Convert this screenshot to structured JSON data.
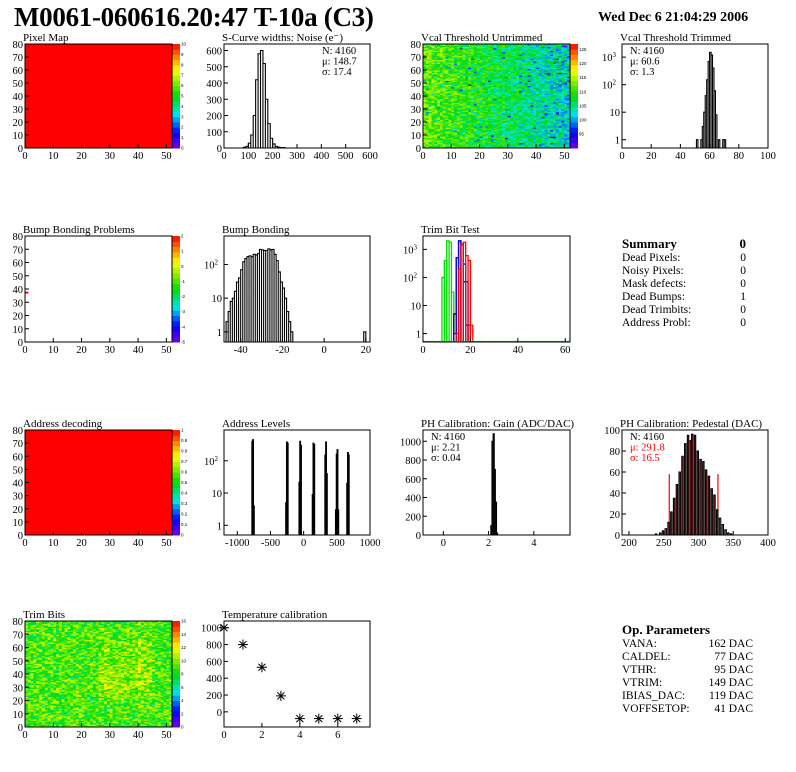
{
  "title": "M0061-060616.20:47 T-10a (C3)",
  "date": "Wed Dec  6 21:04:29 2006",
  "colors": {
    "hist_line": "#000000",
    "fit_red": "#ff0000",
    "trim_green": "#00dd00",
    "trim_blue": "#0000ff",
    "trim_red": "#ff0000"
  },
  "panels": [
    {
      "id": "pixel-map",
      "title": "Pixel Map",
      "type": "heatmap",
      "mode": "uniform",
      "value": 10,
      "zlim": [
        0,
        10
      ],
      "zticks": [
        0,
        1,
        2,
        3,
        4,
        5,
        6,
        7,
        8,
        9,
        10
      ],
      "xlim": [
        0,
        52
      ],
      "ylim": [
        0,
        80
      ],
      "xticks": [
        0,
        10,
        20,
        30,
        40,
        50
      ],
      "yticks": [
        0,
        10,
        20,
        30,
        40,
        50,
        60,
        70,
        80
      ]
    },
    {
      "id": "noise",
      "title": "S-Curve widths: Noise (e⁻)",
      "type": "hist",
      "xlim": [
        0,
        600
      ],
      "ylim": [
        0,
        640
      ],
      "xticks": [
        0,
        100,
        200,
        300,
        400,
        500,
        600
      ],
      "yticks": [
        0,
        100,
        200,
        300,
        400,
        500,
        600
      ],
      "width": 10,
      "bins": [
        [
          80,
          4
        ],
        [
          90,
          10
        ],
        [
          100,
          30
        ],
        [
          110,
          80
        ],
        [
          120,
          200
        ],
        [
          130,
          420
        ],
        [
          140,
          580
        ],
        [
          150,
          600
        ],
        [
          160,
          520
        ],
        [
          170,
          300
        ],
        [
          180,
          150
        ],
        [
          190,
          60
        ],
        [
          200,
          25
        ],
        [
          210,
          10
        ],
        [
          220,
          5
        ],
        [
          230,
          2
        ],
        [
          240,
          3
        ]
      ],
      "stats": {
        "pos": "right",
        "lines": [
          "N: 4160",
          "μ: 148.7",
          "σ: 17.4"
        ]
      }
    },
    {
      "id": "vcal-untrimmed",
      "title": "Vcal Threshold Untrimmed",
      "type": "heatmap",
      "mode": "vcal",
      "zlim": [
        90,
        127
      ],
      "zticks": [
        95,
        100,
        105,
        110,
        115,
        120,
        125
      ],
      "xlim": [
        0,
        52
      ],
      "ylim": [
        0,
        80
      ],
      "xticks": [
        0,
        10,
        20,
        30,
        40,
        50
      ],
      "yticks": [
        0,
        10,
        20,
        30,
        40,
        50,
        60,
        70,
        80
      ]
    },
    {
      "id": "vcal-trimmed",
      "title": "Vcal Threshold Trimmed",
      "type": "hist",
      "log": true,
      "xlim": [
        0,
        100
      ],
      "ylim": [
        0.5,
        3000
      ],
      "xticks": [
        0,
        20,
        40,
        60,
        80,
        100
      ],
      "yticks": [
        1,
        10,
        100,
        1000
      ],
      "width": 1,
      "bins": [
        [
          51,
          1
        ],
        [
          54,
          1
        ],
        [
          55,
          3
        ],
        [
          56,
          10
        ],
        [
          57,
          40
        ],
        [
          58,
          150
        ],
        [
          59,
          700
        ],
        [
          60,
          1500
        ],
        [
          61,
          1200
        ],
        [
          62,
          400
        ],
        [
          63,
          60
        ],
        [
          64,
          8
        ],
        [
          66,
          1
        ],
        [
          69,
          1
        ],
        [
          70,
          1
        ]
      ],
      "stats": {
        "pos": "left",
        "lines": [
          "N: 4160",
          "μ: 60.6",
          "σ:  1.3"
        ]
      }
    },
    {
      "id": "bump-bonding-problems",
      "title": "Bump Bonding Problems",
      "type": "heatmap",
      "mode": "single",
      "cell": [
        0,
        37
      ],
      "zlim": [
        -5,
        2
      ],
      "zticks": [
        -5,
        -4,
        -3,
        -2,
        -1,
        0,
        1,
        2
      ],
      "xlim": [
        0,
        52
      ],
      "ylim": [
        0,
        80
      ],
      "xticks": [
        0,
        10,
        20,
        30,
        40,
        50
      ],
      "yticks": [
        0,
        10,
        20,
        30,
        40,
        50,
        60,
        70,
        80
      ]
    },
    {
      "id": "bump-bonding",
      "title": "Bump Bonding",
      "type": "hist",
      "log": true,
      "xlim": [
        -48,
        22
      ],
      "ylim": [
        0.5,
        700
      ],
      "xticks": [
        -40,
        -20,
        0,
        20
      ],
      "yticks": [
        1,
        10,
        100
      ],
      "width": 1,
      "bins": [
        [
          -47,
          2
        ],
        [
          -46,
          4
        ],
        [
          -45,
          8
        ],
        [
          -44,
          10
        ],
        [
          -43,
          16
        ],
        [
          -42,
          30
        ],
        [
          -41,
          40
        ],
        [
          -40,
          70
        ],
        [
          -39,
          120
        ],
        [
          -38,
          150
        ],
        [
          -37,
          170
        ],
        [
          -36,
          180
        ],
        [
          -35,
          170
        ],
        [
          -34,
          200
        ],
        [
          -33,
          190
        ],
        [
          -32,
          210
        ],
        [
          -31,
          280
        ],
        [
          -30,
          270
        ],
        [
          -29,
          260
        ],
        [
          -28,
          260
        ],
        [
          -27,
          290
        ],
        [
          -26,
          270
        ],
        [
          -25,
          280
        ],
        [
          -24,
          200
        ],
        [
          -23,
          130
        ],
        [
          -22,
          60
        ],
        [
          -21,
          30
        ],
        [
          -20,
          20
        ],
        [
          -19,
          10
        ],
        [
          -18,
          4
        ],
        [
          -17,
          2
        ],
        [
          -16,
          1
        ],
        [
          19,
          1
        ]
      ]
    },
    {
      "id": "trim-bit-test",
      "title": "Trim Bit Test",
      "type": "multihist",
      "log": true,
      "xlim": [
        0,
        62
      ],
      "ylim": [
        0.5,
        3000
      ],
      "xticks": [
        0,
        20,
        40,
        60
      ],
      "yticks": [
        1,
        10,
        100,
        1000
      ],
      "width": 1,
      "series": [
        {
          "color": "#00dd00",
          "bins": [
            [
              8,
              100
            ],
            [
              9,
              400
            ],
            [
              10,
              2000
            ],
            [
              11,
              1800
            ],
            [
              12,
              30
            ]
          ]
        },
        {
          "color": "#000000",
          "bins": [
            [
              13,
              5
            ],
            [
              14,
              500
            ],
            [
              15,
              2000
            ],
            [
              16,
              1500
            ],
            [
              17,
              70
            ],
            [
              18,
              2
            ]
          ]
        },
        {
          "color": "#0000ff",
          "bins": [
            [
              13,
              1
            ],
            [
              14,
              500
            ],
            [
              15,
              2000
            ],
            [
              16,
              1500
            ],
            [
              17,
              300
            ],
            [
              18,
              70
            ],
            [
              19,
              2
            ]
          ]
        },
        {
          "color": "#ff0000",
          "bins": [
            [
              14,
              1
            ],
            [
              15,
              200
            ],
            [
              16,
              1500
            ],
            [
              17,
              1800
            ],
            [
              18,
              600
            ],
            [
              19,
              400
            ],
            [
              20,
              2
            ]
          ]
        }
      ]
    },
    {
      "id": "address-decoding",
      "title": "Address decoding",
      "type": "heatmap",
      "mode": "uniform",
      "value": 1,
      "zlim": [
        0,
        1
      ],
      "zticks": [
        0,
        0.1,
        0.2,
        0.3,
        0.4,
        0.5,
        0.6,
        0.7,
        0.8,
        0.9,
        1
      ],
      "xlim": [
        0,
        52
      ],
      "ylim": [
        0,
        80
      ],
      "xticks": [
        0,
        10,
        20,
        30,
        40,
        50
      ],
      "yticks": [
        0,
        10,
        20,
        30,
        40,
        50,
        60,
        70,
        80
      ]
    },
    {
      "id": "address-levels",
      "title": "Address Levels",
      "type": "hist",
      "log": true,
      "xlim": [
        -1200,
        1000
      ],
      "ylim": [
        0.5,
        900
      ],
      "xticks": [
        -1000,
        -500,
        0,
        500,
        1000
      ],
      "yticks": [
        1,
        10,
        100
      ],
      "width": 12,
      "bins": [
        [
          -780,
          400
        ],
        [
          -768,
          450
        ],
        [
          -756,
          4
        ],
        [
          -270,
          5
        ],
        [
          -258,
          380
        ],
        [
          -246,
          350
        ],
        [
          -70,
          22
        ],
        [
          -58,
          400
        ],
        [
          -46,
          300
        ],
        [
          130,
          9
        ],
        [
          142,
          350
        ],
        [
          154,
          320
        ],
        [
          320,
          150
        ],
        [
          332,
          380
        ],
        [
          344,
          40
        ],
        [
          480,
          3
        ],
        [
          492,
          160
        ],
        [
          504,
          220
        ],
        [
          516,
          3
        ],
        [
          650,
          20
        ],
        [
          662,
          180
        ],
        [
          674,
          150
        ]
      ]
    },
    {
      "id": "ph-gain",
      "title": "PH Calibration: Gain (ADC/DAC)",
      "type": "hist",
      "xlim": [
        -0.9,
        5.6
      ],
      "ylim": [
        0,
        1120
      ],
      "xticks": [
        0,
        2,
        4
      ],
      "yticks": [
        0,
        200,
        400,
        600,
        800,
        1000
      ],
      "width": 0.05,
      "bins": [
        [
          2.1,
          100
        ],
        [
          2.15,
          1000
        ],
        [
          2.2,
          1080
        ],
        [
          2.25,
          700
        ],
        [
          2.3,
          350
        ],
        [
          2.35,
          20
        ]
      ],
      "stats": {
        "pos": "left",
        "lines": [
          "N: 4160",
          "μ: 2.21",
          "σ: 0.04"
        ]
      }
    },
    {
      "id": "ph-pedestal",
      "title": "PH Calibration: Pedestal (DAC)",
      "type": "hist",
      "fit": {
        "range": [
          258,
          328
        ],
        "marker": 58
      },
      "xlim": [
        190,
        400
      ],
      "ylim": [
        0,
        100
      ],
      "xticks": [
        200,
        250,
        300,
        350,
        400
      ],
      "yticks": [
        0,
        20,
        40,
        60,
        80,
        100
      ],
      "width": 2,
      "bins": [
        [
          238,
          1
        ],
        [
          244,
          2
        ],
        [
          248,
          4
        ],
        [
          252,
          6
        ],
        [
          256,
          12
        ],
        [
          260,
          22
        ],
        [
          264,
          35
        ],
        [
          268,
          48
        ],
        [
          272,
          60
        ],
        [
          276,
          75
        ],
        [
          280,
          87
        ],
        [
          284,
          95
        ],
        [
          288,
          90
        ],
        [
          290,
          96
        ],
        [
          294,
          95
        ],
        [
          298,
          80
        ],
        [
          302,
          72
        ],
        [
          306,
          70
        ],
        [
          310,
          62
        ],
        [
          314,
          56
        ],
        [
          318,
          44
        ],
        [
          322,
          38
        ],
        [
          326,
          24
        ],
        [
          330,
          16
        ],
        [
          334,
          10
        ],
        [
          338,
          5
        ],
        [
          342,
          2
        ],
        [
          346,
          1
        ]
      ],
      "stats": {
        "pos": "left",
        "lines": [
          "N: 4160",
          "μ: 291.8",
          "σ: 16.5"
        ],
        "colors": [
          "#000000",
          "#ff0000",
          "#ff0000"
        ]
      }
    },
    {
      "id": "trim-bits",
      "title": "Trim Bits",
      "type": "heatmap",
      "mode": "trim",
      "zlim": [
        0,
        16
      ],
      "zticks": [
        0,
        2,
        4,
        6,
        8,
        10,
        12,
        14,
        16
      ],
      "xlim": [
        0,
        52
      ],
      "ylim": [
        0,
        80
      ],
      "xticks": [
        0,
        10,
        20,
        30,
        40,
        50
      ],
      "yticks": [
        0,
        10,
        20,
        30,
        40,
        50,
        60,
        70,
        80
      ]
    },
    {
      "id": "temperature-calibration",
      "title": "Temperature calibration",
      "type": "points",
      "xlim": [
        0,
        7.7
      ],
      "ylim": [
        -180,
        1080
      ],
      "xticks": [
        0,
        2,
        4,
        6
      ],
      "yticks": [
        0,
        200,
        400,
        600,
        800,
        1000
      ],
      "points": [
        [
          0,
          1000
        ],
        [
          1,
          800
        ],
        [
          2,
          530
        ],
        [
          3,
          190
        ],
        [
          4,
          -80
        ],
        [
          5,
          -80
        ],
        [
          6,
          -80
        ],
        [
          7,
          -80
        ]
      ]
    }
  ],
  "summary": {
    "header": "Summary",
    "header_value": "0",
    "rows": [
      {
        "label": "Dead Pixels:",
        "value": "0"
      },
      {
        "label": "Noisy Pixels:",
        "value": "0"
      },
      {
        "label": "Mask defects:",
        "value": "0"
      },
      {
        "label": "Dead Bumps:",
        "value": "1"
      },
      {
        "label": "Dead Trimbits:",
        "value": "0"
      },
      {
        "label": "Address Probl:",
        "value": "0"
      }
    ]
  },
  "op_parameters": {
    "header": "Op. Parameters",
    "rows": [
      {
        "label": "VANA:",
        "value": "162 DAC"
      },
      {
        "label": "CALDEL:",
        "value": "77 DAC"
      },
      {
        "label": "VTHR:",
        "value": "95 DAC"
      },
      {
        "label": "VTRIM:",
        "value": "149 DAC"
      },
      {
        "label": "IBIAS_DAC:",
        "value": "119 DAC"
      },
      {
        "label": "VOFFSETOP:",
        "value": "41 DAC"
      }
    ]
  }
}
